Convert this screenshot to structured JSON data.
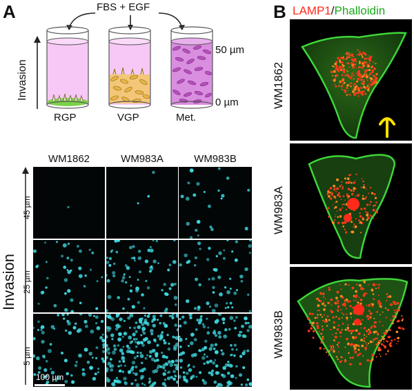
{
  "panel_a": {
    "letter": "A",
    "top_label": "FBS + EGF",
    "axis_label": "Invasion",
    "depth_top": "50 µm",
    "depth_bottom": "0 µm",
    "columns": [
      "RGP",
      "VGP",
      "Met."
    ]
  },
  "grid": {
    "col_heads": [
      "WM1862",
      "WM983A",
      "WM983B"
    ],
    "row_labels": [
      "45 µm",
      "25 µm",
      "5 µm"
    ],
    "axis_label": "Invasion",
    "scale_bar": "100 µm",
    "density": [
      [
        1,
        3,
        22
      ],
      [
        40,
        75,
        55
      ],
      [
        85,
        240,
        150
      ]
    ]
  },
  "panel_b": {
    "letter": "B",
    "title_red": "LAMP1",
    "title_sep": "/",
    "title_green": "Phalloidin",
    "rows": [
      "WM1862",
      "WM983A",
      "WM983B"
    ],
    "colors": {
      "red": "#ff2a1a",
      "green": "#18a81a",
      "arrow": "#ffe200",
      "cyan": "#3fd8e0"
    }
  }
}
